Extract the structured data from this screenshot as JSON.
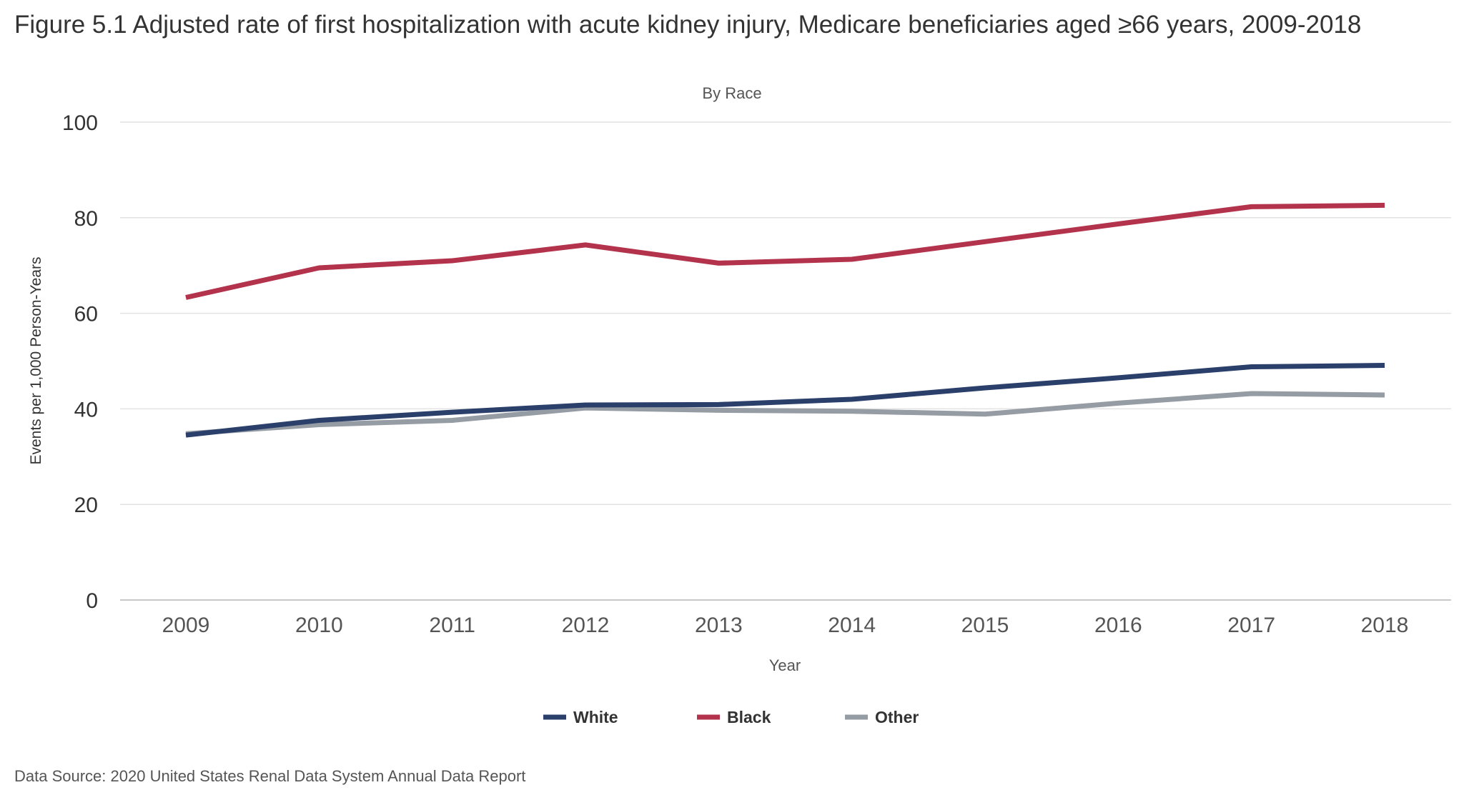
{
  "figure": {
    "title": "Figure 5.1 Adjusted rate of first hospitalization with acute kidney injury, Medicare beneficiaries aged ≥66 years, 2009-2018",
    "source": "Data Source: 2020 United States Renal Data System Annual Data Report"
  },
  "chart_data": {
    "type": "line",
    "subtitle": "By Race",
    "xlabel": "Year",
    "ylabel": "Events per 1,000 Person-Years",
    "x": [
      "2009",
      "2010",
      "2011",
      "2012",
      "2013",
      "2014",
      "2015",
      "2016",
      "2017",
      "2018"
    ],
    "y_ticks": [
      "0",
      "20",
      "40",
      "60",
      "80",
      "100"
    ],
    "ylim": [
      0,
      100
    ],
    "grid": "horizontal",
    "legend_position": "bottom-center",
    "series": [
      {
        "name": "White",
        "color": "#2b3f6b",
        "values": [
          34.5,
          37.6,
          39.3,
          40.8,
          40.9,
          42.0,
          44.4,
          46.5,
          48.8,
          49.1
        ]
      },
      {
        "name": "Black",
        "color": "#b2334b",
        "values": [
          63.3,
          69.5,
          71.0,
          74.3,
          70.5,
          71.3,
          75.0,
          78.7,
          82.3,
          82.6
        ]
      },
      {
        "name": "Other",
        "color": "#959ca4",
        "values": [
          34.8,
          36.7,
          37.6,
          40.2,
          39.7,
          39.5,
          38.9,
          41.2,
          43.2,
          42.9
        ]
      }
    ]
  }
}
